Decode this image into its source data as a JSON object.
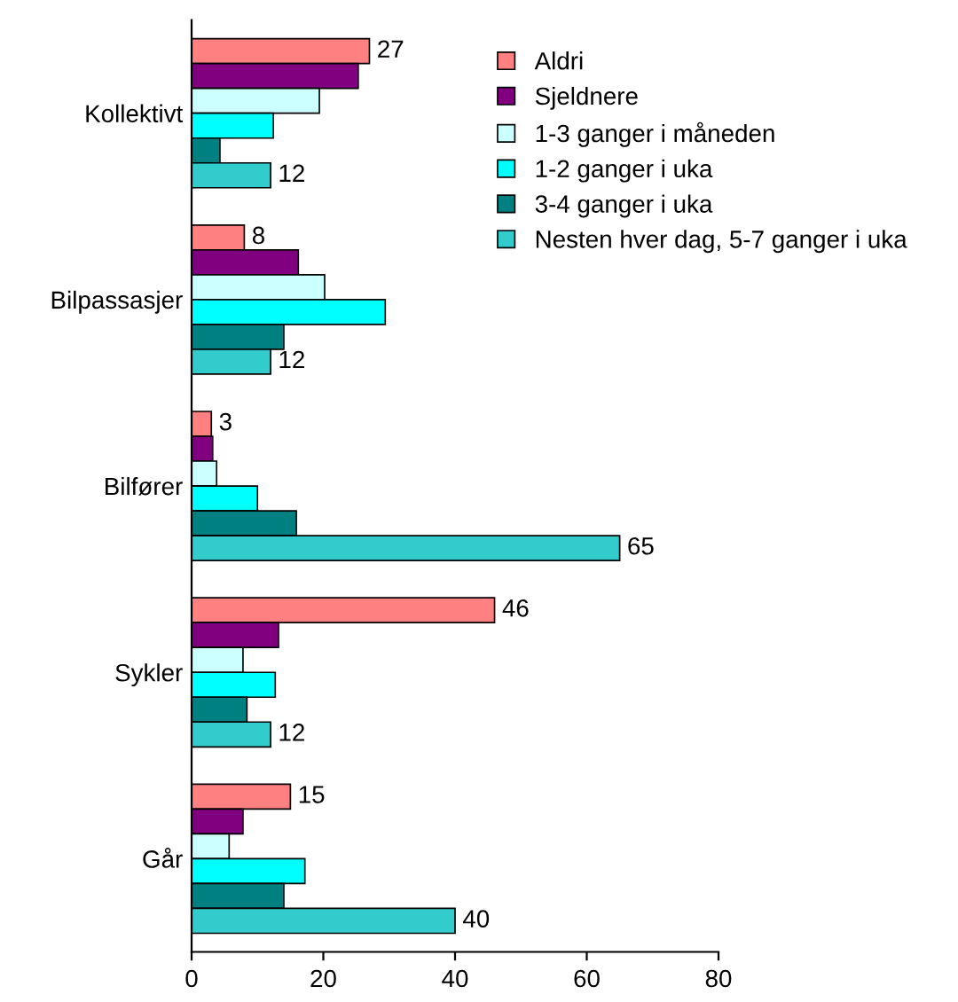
{
  "chart_data": {
    "type": "bar",
    "orientation": "horizontal",
    "categories": [
      "Kollektivt",
      "Bilpassasjer",
      "Bilfører",
      "Sykler",
      "Går"
    ],
    "series": [
      {
        "name": "Aldri",
        "color": "#ff8080",
        "values": [
          27,
          8,
          3,
          46,
          15
        ],
        "value_labels": [
          "27",
          "8",
          "3",
          "46",
          "15"
        ]
      },
      {
        "name": "Sjeldnere",
        "color": "#800080",
        "values": [
          25.3,
          16.2,
          3.2,
          13.2,
          7.8
        ]
      },
      {
        "name": "1-3 ganger i måneden",
        "color": "#ccffff",
        "values": [
          19.4,
          20.2,
          3.8,
          7.8,
          5.7
        ]
      },
      {
        "name": "1-2 ganger i uka",
        "color": "#00ffff",
        "values": [
          12.4,
          29.4,
          10,
          12.7,
          17.2
        ]
      },
      {
        "name": "3-4 ganger i uka",
        "color": "#008080",
        "values": [
          4.3,
          14,
          15.9,
          8.4,
          14
        ]
      },
      {
        "name": "Nesten hver dag, 5-7 ganger i uka",
        "color": "#33cccc",
        "values": [
          12,
          12,
          65,
          12,
          40
        ],
        "value_labels": [
          "12",
          "12",
          "65",
          "12",
          "40"
        ]
      }
    ],
    "xlim": [
      0,
      80
    ],
    "xticks": [
      0,
      20,
      40,
      60,
      80
    ],
    "grid": false,
    "legend": "top right"
  }
}
